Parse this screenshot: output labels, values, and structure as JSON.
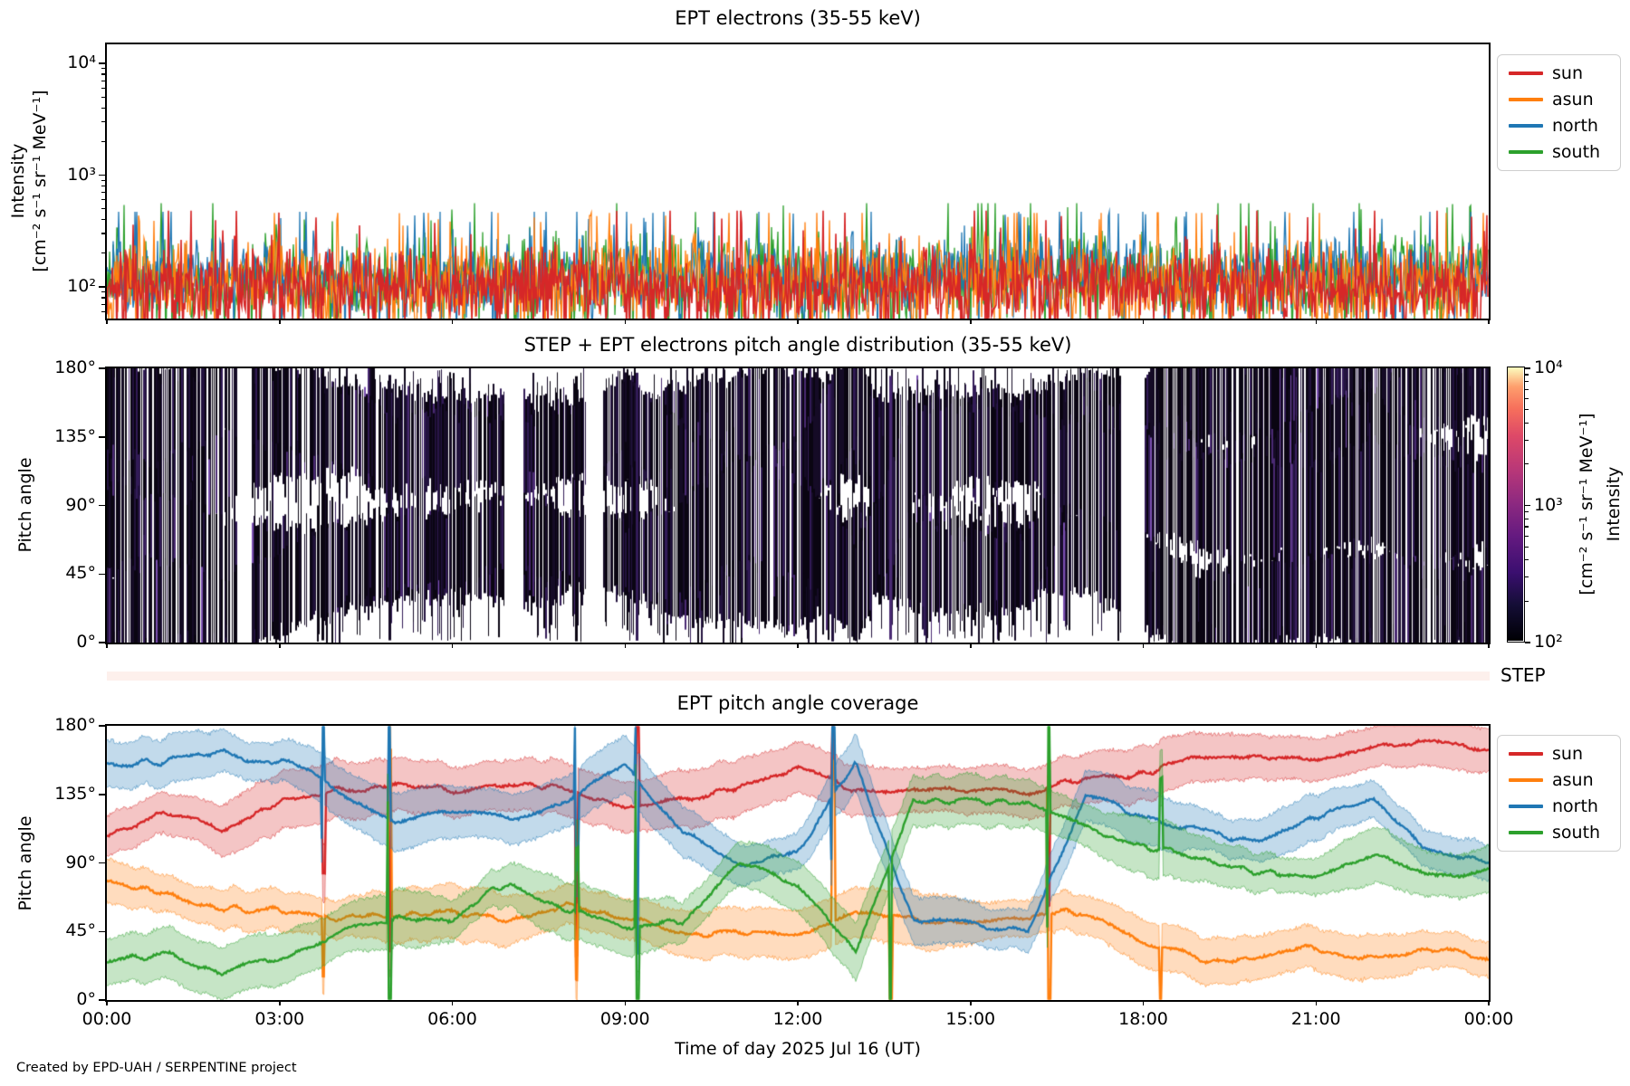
{
  "figure": {
    "credit": "Created by EPD-UAH / SERPENTINE project"
  },
  "x_axis": {
    "label": "Time of day 2025 Jul 16 (UT)",
    "tick_hours": [
      0,
      3,
      6,
      9,
      12,
      15,
      18,
      21,
      24
    ],
    "tick_labels": [
      "00:00",
      "03:00",
      "06:00",
      "09:00",
      "12:00",
      "15:00",
      "18:00",
      "21:00",
      "00:00"
    ],
    "range_hours": [
      0,
      24
    ]
  },
  "colors": {
    "sun": "#d62728",
    "asun": "#ff7f0e",
    "north": "#1f77b4",
    "south": "#2ca02c"
  },
  "step_strip": {
    "label": "STEP",
    "color": "#fdf0ec"
  },
  "chart_data": [
    {
      "id": "ept_electrons",
      "type": "line",
      "title": "EPT electrons (35-55 keV)",
      "ylabel": "Intensity",
      "ylabel_units": "[cm⁻² s⁻¹ sr⁻¹ MeV⁻¹]",
      "yscale": "log",
      "ylim": [
        52,
        14800
      ],
      "ytick_values": [
        100,
        1000,
        10000
      ],
      "ytick_labels": [
        "10²",
        "10³",
        "10⁴"
      ],
      "values_approx_range": [
        55,
        600
      ],
      "legend": [
        {
          "label": "sun",
          "color": "#d62728"
        },
        {
          "label": "asun",
          "color": "#ff7f0e"
        },
        {
          "label": "north",
          "color": "#1f77b4"
        },
        {
          "label": "south",
          "color": "#2ca02c"
        }
      ],
      "series": [
        {
          "name": "south",
          "color": "#2ca02c",
          "baseline": 128,
          "noise_dex": 0.17,
          "dip_prob": 0.12,
          "spike_prob": 0.04,
          "spike_max": 560,
          "seed": 44,
          "linewidth": 1.3
        },
        {
          "name": "north",
          "color": "#1f77b4",
          "baseline": 125,
          "noise_dex": 0.16,
          "dip_prob": 0.12,
          "spike_prob": 0.035,
          "spike_max": 470,
          "seed": 33,
          "linewidth": 1.3
        },
        {
          "name": "asun",
          "color": "#ff7f0e",
          "baseline": 118,
          "noise_dex": 0.17,
          "dip_prob": 0.12,
          "spike_prob": 0.035,
          "spike_max": 460,
          "seed": 22,
          "linewidth": 1.3
        },
        {
          "name": "sun",
          "color": "#d62728",
          "baseline": 102,
          "noise_dex": 0.16,
          "dip_prob": 0.1,
          "spike_prob": 0.03,
          "spike_max": 480,
          "seed": 11,
          "linewidth": 1.6
        }
      ]
    },
    {
      "id": "pad",
      "type": "heatmap",
      "title": "STEP + EPT electrons pitch angle distribution (35-55 keV)",
      "ylabel": "Pitch angle",
      "ylim_deg": [
        0,
        180
      ],
      "ytick_deg": [
        0,
        45,
        90,
        135,
        180
      ],
      "ytick_labels": [
        "0°",
        "45°",
        "90°",
        "135°",
        "180°"
      ],
      "intensity_range": [
        100,
        10000
      ],
      "intensity_typical": [
        100,
        400
      ],
      "colormap": "magma",
      "colorbar": {
        "label": "Intensity",
        "label_units": "[cm⁻² s⁻¹ sr⁻¹ MeV⁻¹]",
        "tick_values": [
          100,
          1000,
          10000
        ],
        "tick_labels": [
          "10²",
          "10³",
          "10⁴"
        ]
      },
      "band_halfwidth_deg": 21,
      "gap_prob": 0.04,
      "step_stripe_prob": 0.22,
      "seed": 7
    },
    {
      "id": "ept_coverage",
      "type": "line",
      "title": "EPT pitch angle coverage",
      "ylabel": "Pitch angle",
      "ylim_deg": [
        0,
        180
      ],
      "ytick_deg": [
        0,
        45,
        90,
        135,
        180
      ],
      "ytick_labels": [
        "0°",
        "45°",
        "90°",
        "135°",
        "180°"
      ],
      "band_halfwidth_deg": 15,
      "hours": [
        0,
        1,
        2,
        3,
        4,
        5,
        6,
        7,
        8,
        9,
        10,
        11,
        12,
        13,
        14,
        15,
        16,
        17,
        18,
        19,
        20,
        21,
        22,
        23,
        24
      ],
      "transition_hours": [
        3.75,
        4.9,
        8.15,
        9.2,
        12.6,
        13.6,
        16.35,
        18.3
      ],
      "series": [
        {
          "name": "sun",
          "color": "#d62728",
          "seed": 101,
          "pitch_deg_hourly": [
            113,
            120,
            112,
            130,
            138,
            141,
            136,
            140,
            134,
            130,
            136,
            141,
            150,
            137,
            136,
            136,
            138,
            150,
            152,
            160,
            165,
            160,
            165,
            170,
            168
          ]
        },
        {
          "name": "asun",
          "color": "#ff7f0e",
          "seed": 102,
          "pitch_deg_hourly": [
            75,
            70,
            58,
            55,
            50,
            53,
            55,
            50,
            60,
            55,
            46,
            45,
            40,
            54,
            50,
            50,
            52,
            56,
            40,
            25,
            30,
            35,
            25,
            30,
            26
          ]
        },
        {
          "name": "north",
          "color": "#1f77b4",
          "seed": 103,
          "pitch_deg_hourly": [
            158,
            152,
            166,
            155,
            138,
            120,
            126,
            121,
            134,
            152,
            115,
            92,
            100,
            160,
            52,
            50,
            46,
            138,
            120,
            110,
            100,
            120,
            130,
            95,
            90
          ]
        },
        {
          "name": "south",
          "color": "#2ca02c",
          "seed": 104,
          "pitch_deg_hourly": [
            20,
            26,
            14,
            30,
            45,
            56,
            55,
            75,
            60,
            50,
            56,
            86,
            74,
            30,
            130,
            130,
            128,
            112,
            100,
            90,
            85,
            80,
            95,
            85,
            85
          ]
        }
      ],
      "legend": [
        {
          "label": "sun",
          "color": "#d62728"
        },
        {
          "label": "asun",
          "color": "#ff7f0e"
        },
        {
          "label": "north",
          "color": "#1f77b4"
        },
        {
          "label": "south",
          "color": "#2ca02c"
        }
      ]
    }
  ]
}
